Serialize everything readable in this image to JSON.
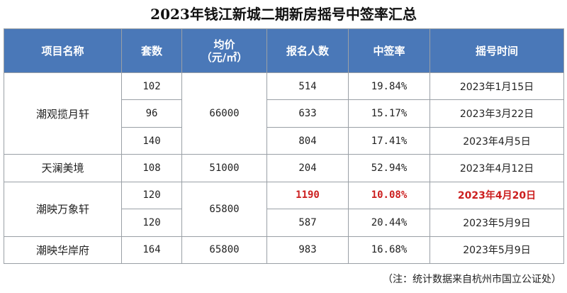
{
  "title": "2023年钱江新城二期新房摇号中签率汇总",
  "headers": {
    "project": "项目名称",
    "units": "套数",
    "price_line1": "均价",
    "price_line2": "（元/㎡）",
    "applicants": "报名人数",
    "rate": "中签率",
    "lottery_date": "摇号时间"
  },
  "groups": [
    {
      "name": "潮观揽月轩",
      "price": "66000",
      "rows": [
        {
          "units": "102",
          "applicants": "514",
          "rate": "19.84%",
          "date": "2023年1月15日"
        },
        {
          "units": "96",
          "applicants": "633",
          "rate": "15.17%",
          "date": "2023年3月22日"
        },
        {
          "units": "140",
          "applicants": "804",
          "rate": "17.41%",
          "date": "2023年4月5日"
        }
      ]
    },
    {
      "name": "天澜美境",
      "price": "51000",
      "rows": [
        {
          "units": "108",
          "applicants": "204",
          "rate": "52.94%",
          "date": "2023年4月12日"
        }
      ]
    },
    {
      "name": "潮映万象轩",
      "price": "65800",
      "rows": [
        {
          "units": "120",
          "applicants": "1190",
          "rate": "10.08%",
          "date": "2023年4月20日",
          "highlight": true
        },
        {
          "units": "120",
          "applicants": "587",
          "rate": "20.44%",
          "date": "2023年5月9日"
        }
      ]
    },
    {
      "name": "潮映华岸府",
      "price": "65800",
      "rows": [
        {
          "units": "164",
          "applicants": "983",
          "rate": "16.68%",
          "date": "2023年5月9日"
        }
      ]
    }
  ],
  "note": "（注：统计数据来自杭州市国立公证处）",
  "colors": {
    "header_bg": "#4a78b8",
    "header_text": "#ffffff",
    "highlight": "#cc1f1f",
    "border": "#9aa0a6"
  }
}
